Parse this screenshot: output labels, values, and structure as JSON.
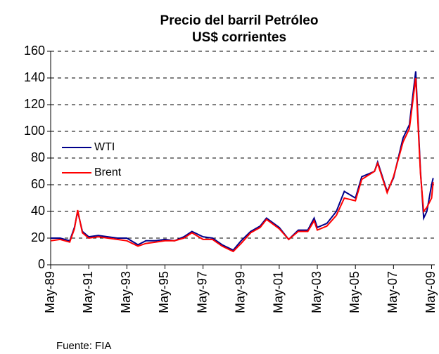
{
  "chart_data": {
    "type": "line",
    "title": "Precio del barril Petróleo",
    "subtitle": "US$ corrientes",
    "source": "Fuente: FIA",
    "x": [
      "1989-05",
      "1989-11",
      "1990-05",
      "1990-08",
      "1990-10",
      "1991-01",
      "1991-05",
      "1991-11",
      "1992-05",
      "1992-11",
      "1993-05",
      "1993-12",
      "1994-05",
      "1994-11",
      "1995-05",
      "1995-11",
      "1996-05",
      "1996-10",
      "1997-05",
      "1997-11",
      "1998-05",
      "1998-12",
      "1999-05",
      "1999-11",
      "2000-05",
      "2000-09",
      "2001-05",
      "2001-11",
      "2002-05",
      "2002-11",
      "2003-03",
      "2003-05",
      "2003-11",
      "2004-05",
      "2004-10",
      "2005-05",
      "2005-09",
      "2006-05",
      "2006-07",
      "2007-01",
      "2007-05",
      "2007-11",
      "2008-03",
      "2008-07",
      "2008-10",
      "2008-12",
      "2009-02",
      "2009-05",
      "2009-06"
    ],
    "series": [
      {
        "name": "WTI",
        "color": "#00008b",
        "values": [
          20,
          20,
          18,
          28,
          40,
          25,
          21,
          22,
          21,
          20,
          20,
          15,
          18,
          18,
          19,
          18,
          21,
          25,
          21,
          20,
          15,
          11,
          18,
          25,
          29,
          35,
          28,
          19,
          26,
          26,
          35,
          28,
          31,
          40,
          55,
          50,
          66,
          70,
          77,
          55,
          65,
          95,
          105,
          145,
          70,
          35,
          40,
          60,
          65
        ]
      },
      {
        "name": "Brent",
        "color": "#ff0000",
        "values": [
          18,
          19,
          17,
          27,
          41,
          24,
          20,
          21,
          20,
          19,
          18,
          14,
          16,
          17,
          18,
          18,
          20,
          24,
          19,
          19,
          14,
          10,
          16,
          24,
          28,
          34,
          27,
          19,
          25,
          25,
          33,
          26,
          29,
          37,
          50,
          48,
          64,
          70,
          76,
          54,
          66,
          92,
          102,
          140,
          68,
          40,
          43,
          50,
          62
        ]
      }
    ],
    "xlim": [
      "1989-05",
      "2009-07"
    ],
    "xticks": [
      {
        "value": "1989-05",
        "label": "May-89"
      },
      {
        "value": "1991-05",
        "label": "May-91"
      },
      {
        "value": "1993-05",
        "label": "May-93"
      },
      {
        "value": "1995-05",
        "label": "May-95"
      },
      {
        "value": "1997-05",
        "label": "May-97"
      },
      {
        "value": "1999-05",
        "label": "May-99"
      },
      {
        "value": "2001-05",
        "label": "May-01"
      },
      {
        "value": "2003-05",
        "label": "May-03"
      },
      {
        "value": "2005-05",
        "label": "May-05"
      },
      {
        "value": "2007-05",
        "label": "May-07"
      },
      {
        "value": "2009-05",
        "label": "May-09"
      }
    ],
    "ylim": [
      0,
      160
    ],
    "yticks": [
      0,
      20,
      40,
      60,
      80,
      100,
      120,
      140,
      160
    ],
    "grid": true
  }
}
